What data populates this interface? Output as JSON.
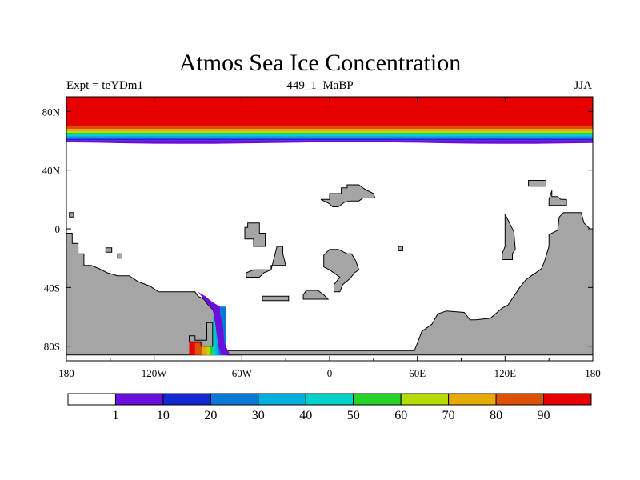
{
  "title": "Atmos Sea Ice Concentration",
  "subtitle_left": "Expt = teYDm1",
  "subtitle_center": "449_1_MaBP",
  "subtitle_right": "JJA",
  "colors": {
    "land": "#a5a5a5",
    "ocean": "#ffffff",
    "border": "#000000"
  },
  "chart_data": {
    "type": "heatmap",
    "variable": "sea ice concentration (%)",
    "x_ticks": [
      "180",
      "120W",
      "60W",
      "0",
      "60E",
      "120E",
      "180"
    ],
    "x_tick_values": [
      -180,
      -120,
      -60,
      0,
      60,
      120,
      180
    ],
    "y_ticks": [
      "80N",
      "40N",
      "0",
      "40S",
      "80S"
    ],
    "y_tick_values": [
      80,
      40,
      0,
      -40,
      -80
    ],
    "xlim": [
      -180,
      180
    ],
    "ylim": [
      -90,
      90
    ],
    "colorbar": {
      "labels": [
        "1",
        "10",
        "20",
        "30",
        "40",
        "50",
        "60",
        "70",
        "80",
        "90"
      ],
      "colors": [
        "#ffffff",
        "#6a0fdc",
        "#1428d2",
        "#0a78d7",
        "#00afdc",
        "#00d2c8",
        "#28d228",
        "#b4dc00",
        "#e6aa00",
        "#dc5000",
        "#e60000"
      ]
    },
    "north_ice_bands": [
      {
        "lat_from": 90,
        "lat_to": 70,
        "color": "#e60000"
      },
      {
        "lat_from": 70,
        "lat_to": 68,
        "color": "#dc5000"
      },
      {
        "lat_from": 68,
        "lat_to": 66.5,
        "color": "#e6aa00"
      },
      {
        "lat_from": 66.5,
        "lat_to": 65.5,
        "color": "#b4dc00"
      },
      {
        "lat_from": 65.5,
        "lat_to": 64.5,
        "color": "#28d228"
      },
      {
        "lat_from": 64.5,
        "lat_to": 63.5,
        "color": "#00d2c8"
      },
      {
        "lat_from": 63.5,
        "lat_to": 62.5,
        "color": "#00afdc"
      },
      {
        "lat_from": 62.5,
        "lat_to": 61.5,
        "color": "#0a78d7"
      },
      {
        "lat_from": 61.5,
        "lat_to": 60.5,
        "color": "#1428d2"
      },
      {
        "lat_from": 60.5,
        "lat_to": 58.5,
        "color": "#6a0fdc"
      }
    ],
    "land_polygons": [
      {
        "name": "western-land-mass",
        "points": [
          [
            -180,
            -86
          ],
          [
            -180,
            -3
          ],
          [
            -176,
            -3
          ],
          [
            -176,
            -10
          ],
          [
            -172,
            -10
          ],
          [
            -172,
            -17
          ],
          [
            -168,
            -17
          ],
          [
            -168,
            -25
          ],
          [
            -163,
            -25
          ],
          [
            -158,
            -27
          ],
          [
            -152,
            -30
          ],
          [
            -145,
            -32
          ],
          [
            -137,
            -32
          ],
          [
            -131,
            -36
          ],
          [
            -123,
            -39
          ],
          [
            -117,
            -43
          ],
          [
            -92,
            -43
          ],
          [
            -90,
            -46
          ],
          [
            -86,
            -48
          ],
          [
            -83,
            -52
          ],
          [
            -80,
            -55
          ],
          [
            -78,
            -60
          ],
          [
            -78,
            -70
          ],
          [
            -76,
            -76
          ],
          [
            -74,
            -83
          ],
          [
            -70,
            -84
          ],
          [
            -60,
            -84
          ],
          [
            -60,
            -86
          ]
        ]
      },
      {
        "name": "southern-shelf",
        "points": [
          [
            -70,
            -86
          ],
          [
            -70,
            -83
          ],
          [
            58,
            -83
          ],
          [
            60,
            -78
          ],
          [
            63,
            -70
          ],
          [
            70,
            -65
          ],
          [
            74,
            -58
          ],
          [
            80,
            -56
          ],
          [
            92,
            -57
          ],
          [
            96,
            -62
          ],
          [
            100,
            -62
          ],
          [
            110,
            -61
          ],
          [
            118,
            -54
          ],
          [
            122,
            -52
          ],
          [
            126,
            -46
          ],
          [
            130,
            -40
          ],
          [
            134,
            -35
          ],
          [
            138,
            -32
          ],
          [
            141,
            -30
          ],
          [
            145,
            -27
          ],
          [
            147,
            -22
          ],
          [
            150,
            -12
          ],
          [
            150,
            -4
          ],
          [
            156,
            -1
          ],
          [
            157,
            8
          ],
          [
            160,
            11
          ],
          [
            172,
            11
          ],
          [
            174,
            4
          ],
          [
            178,
            0
          ],
          [
            180,
            0
          ],
          [
            180,
            -86
          ]
        ]
      },
      {
        "name": "island-west-small",
        "points": [
          [
            -178,
            11
          ],
          [
            -178,
            8
          ],
          [
            -175,
            8
          ],
          [
            -175,
            11
          ]
        ]
      },
      {
        "name": "island-small-1",
        "points": [
          [
            -153,
            -13
          ],
          [
            -153,
            -16
          ],
          [
            -149,
            -16
          ],
          [
            -149,
            -13
          ]
        ]
      },
      {
        "name": "island-small-2",
        "points": [
          [
            -145,
            -17
          ],
          [
            -145,
            -20
          ],
          [
            -142,
            -20
          ],
          [
            -142,
            -17
          ]
        ]
      },
      {
        "name": "island-mid-a",
        "points": [
          [
            -58,
            1
          ],
          [
            -56,
            1
          ],
          [
            -56,
            4
          ],
          [
            -48,
            4
          ],
          [
            -48,
            -3
          ],
          [
            -44,
            -3
          ],
          [
            -44,
            -12
          ],
          [
            -52,
            -12
          ],
          [
            -52,
            -7
          ],
          [
            -58,
            -7
          ]
        ]
      },
      {
        "name": "island-mid-b",
        "points": [
          [
            -36,
            -12
          ],
          [
            -32,
            -12
          ],
          [
            -32,
            -17
          ],
          [
            -30,
            -25
          ],
          [
            -40,
            -25
          ],
          [
            -40,
            -28
          ],
          [
            -52,
            -28
          ],
          [
            -57,
            -30
          ],
          [
            -57,
            -33
          ],
          [
            -48,
            -33
          ],
          [
            -45,
            -30
          ],
          [
            -40,
            -28
          ]
        ]
      },
      {
        "name": "island-strip-a",
        "points": [
          [
            -46,
            -46
          ],
          [
            -46,
            -49
          ],
          [
            -28,
            -49
          ],
          [
            -28,
            -46
          ]
        ]
      },
      {
        "name": "island-strip-b",
        "points": [
          [
            -18,
            -45
          ],
          [
            -16,
            -42
          ],
          [
            -8,
            -42
          ],
          [
            -4,
            -45
          ],
          [
            -1,
            -48
          ],
          [
            -16,
            -48
          ],
          [
            -18,
            -48
          ]
        ]
      },
      {
        "name": "island-center",
        "points": [
          [
            -4,
            -18
          ],
          [
            0,
            -14
          ],
          [
            6,
            -14
          ],
          [
            12,
            -17
          ],
          [
            15,
            -17
          ],
          [
            18,
            -22
          ],
          [
            20,
            -28
          ],
          [
            17,
            -30
          ],
          [
            14,
            -34
          ],
          [
            9,
            -38
          ],
          [
            7,
            -43
          ],
          [
            3,
            -43
          ],
          [
            3,
            -38
          ],
          [
            7,
            -33
          ],
          [
            0,
            -28
          ],
          [
            -4,
            -26
          ]
        ]
      },
      {
        "name": "island-north-a",
        "points": [
          [
            -6,
            20
          ],
          [
            0,
            20
          ],
          [
            0,
            24
          ],
          [
            8,
            24
          ],
          [
            8,
            28
          ],
          [
            12,
            28
          ],
          [
            12,
            30
          ],
          [
            20,
            30
          ],
          [
            24,
            27
          ],
          [
            30,
            24
          ],
          [
            31,
            21
          ],
          [
            23,
            21
          ],
          [
            20,
            19
          ],
          [
            14,
            19
          ],
          [
            10,
            18
          ],
          [
            6,
            15
          ],
          [
            2,
            15
          ],
          [
            0,
            17
          ]
        ]
      },
      {
        "name": "island-east-small",
        "points": [
          [
            47,
            -12
          ],
          [
            47,
            -15
          ],
          [
            50,
            -15
          ],
          [
            50,
            -12
          ]
        ]
      },
      {
        "name": "island-east-rect",
        "points": [
          [
            136,
            33
          ],
          [
            136,
            29
          ],
          [
            148,
            29
          ],
          [
            148,
            33
          ]
        ]
      },
      {
        "name": "island-east-arc",
        "points": [
          [
            152,
            26
          ],
          [
            152,
            22
          ],
          [
            156,
            22
          ],
          [
            158,
            20
          ],
          [
            162,
            20
          ],
          [
            162,
            16
          ],
          [
            150,
            16
          ],
          [
            150,
            20
          ]
        ]
      },
      {
        "name": "island-east-strip",
        "points": [
          [
            120,
            10
          ],
          [
            120,
            -12
          ],
          [
            118,
            -17
          ],
          [
            118,
            -21
          ],
          [
            125,
            -21
          ],
          [
            125,
            -17
          ],
          [
            127,
            -14
          ],
          [
            126,
            -2
          ],
          [
            122,
            6
          ]
        ]
      }
    ],
    "south_ice": [
      {
        "points": [
          [
            -96,
            -77
          ],
          [
            -96,
            -86
          ],
          [
            -80,
            -86
          ],
          [
            -80,
            -77
          ]
        ],
        "color": "#e60000"
      },
      {
        "points": [
          [
            -92,
            -78
          ],
          [
            -92,
            -86
          ],
          [
            -78,
            -86
          ],
          [
            -78,
            -78
          ]
        ],
        "color": "#dc5000"
      },
      {
        "points": [
          [
            -87,
            -78
          ],
          [
            -87,
            -86
          ],
          [
            -77,
            -86
          ],
          [
            -77,
            -78
          ]
        ],
        "color": "#e6aa00"
      },
      {
        "points": [
          [
            -84,
            -74
          ],
          [
            -84,
            -86
          ],
          [
            -76,
            -86
          ],
          [
            -76,
            -74
          ]
        ],
        "color": "#b4dc00"
      },
      {
        "points": [
          [
            -82,
            -66
          ],
          [
            -82,
            -86
          ],
          [
            -75,
            -86
          ],
          [
            -75,
            -66
          ]
        ],
        "color": "#28d228"
      },
      {
        "points": [
          [
            -80,
            -60
          ],
          [
            -80,
            -86
          ],
          [
            -74,
            -86
          ],
          [
            -74,
            -60
          ]
        ],
        "color": "#00d2c8"
      },
      {
        "points": [
          [
            -78,
            -55
          ],
          [
            -78,
            -86
          ],
          [
            -72,
            -86
          ],
          [
            -72,
            -55
          ]
        ],
        "color": "#00afdc"
      },
      {
        "points": [
          [
            -76,
            -53
          ],
          [
            -76,
            -86
          ],
          [
            -71,
            -86
          ],
          [
            -71,
            -53
          ]
        ],
        "color": "#0a78d7"
      },
      {
        "points": [
          [
            -90,
            -43
          ],
          [
            -85,
            -46
          ],
          [
            -80,
            -50
          ],
          [
            -75,
            -53
          ],
          [
            -75,
            -58
          ],
          [
            -73,
            -66
          ],
          [
            -72,
            -78
          ],
          [
            -68,
            -86
          ],
          [
            -74,
            -86
          ],
          [
            -76,
            -80
          ],
          [
            -78,
            -66
          ],
          [
            -80,
            -55
          ],
          [
            -86,
            -48
          ]
        ],
        "color": "#6a0fdc"
      }
    ],
    "ice_land_patch": [
      [
        -96,
        -77
      ],
      [
        -96,
        -73
      ],
      [
        -92,
        -73
      ],
      [
        -92,
        -76
      ],
      [
        -84,
        -76
      ],
      [
        -84,
        -64
      ],
      [
        -80,
        -64
      ],
      [
        -80,
        -80
      ],
      [
        -88,
        -80
      ],
      [
        -88,
        -77
      ]
    ]
  }
}
